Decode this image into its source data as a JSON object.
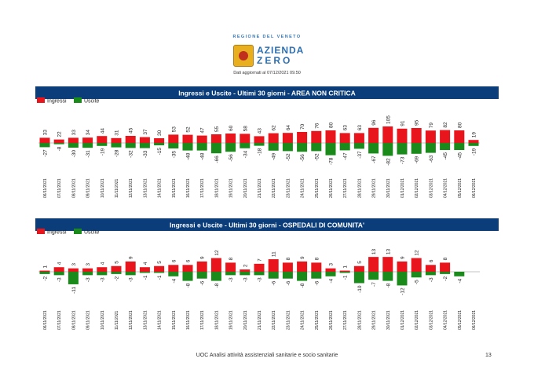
{
  "header": {
    "org": "REGIONE DEL VENETO",
    "brand_line1": "AZIENDA",
    "brand_line2": "ZERO",
    "updated": "Dati aggiornati al 07/12/2021 09.50"
  },
  "footer": {
    "text": "UOC Analisi attività assistenziali sanitarie e socio sanitarie",
    "page": "13"
  },
  "colors": {
    "ingressi": "#e8161c",
    "uscite": "#1a8a1a",
    "banner": "#0a3d7a"
  },
  "chart_data": [
    {
      "type": "bar",
      "title": "Ingressi e Uscite - Ultimi 30 giorni - AREA NON CRITICA",
      "categories": [
        "06/11/2021",
        "07/11/2021",
        "08/11/2021",
        "09/11/2021",
        "10/11/2021",
        "11/11/2021",
        "12/11/2021",
        "13/11/2021",
        "14/11/2021",
        "15/11/2021",
        "16/11/2021",
        "17/11/2021",
        "18/11/2021",
        "19/11/2021",
        "20/11/2021",
        "21/11/2021",
        "22/11/2021",
        "23/11/2021",
        "24/11/2021",
        "25/11/2021",
        "26/11/2021",
        "27/11/2021",
        "28/11/2021",
        "29/11/2021",
        "30/11/2021",
        "01/12/2021",
        "02/12/2021",
        "03/12/2021",
        "04/12/2021",
        "05/12/2021",
        "06/12/2021"
      ],
      "series": [
        {
          "name": "Ingressi",
          "values": [
            33,
            22,
            33,
            34,
            44,
            31,
            45,
            37,
            30,
            53,
            52,
            47,
            55,
            60,
            58,
            43,
            62,
            64,
            70,
            76,
            80,
            63,
            63,
            96,
            105,
            91,
            95,
            79,
            82,
            80,
            19
          ]
        },
        {
          "name": "Uscite",
          "values": [
            -27,
            -8,
            -30,
            -31,
            -19,
            -28,
            -32,
            -33,
            -15,
            -35,
            -48,
            -48,
            -66,
            -56,
            -34,
            -18,
            -49,
            -52,
            -56,
            -52,
            -78,
            -47,
            -37,
            -67,
            -82,
            -73,
            -69,
            -63,
            -45,
            -45,
            -19
          ]
        }
      ],
      "legend": "top-left"
    },
    {
      "type": "bar",
      "title": "Ingressi e Uscite - Ultimi 30 giorni - OSPEDALI DI COMUNITA'",
      "categories": [
        "06/11/2021",
        "07/11/2021",
        "08/11/2021",
        "09/11/2021",
        "10/11/2021",
        "11/11/2021",
        "12/11/2021",
        "13/11/2021",
        "14/11/2021",
        "15/11/2021",
        "16/11/2021",
        "17/11/2021",
        "18/11/2021",
        "19/11/2021",
        "20/11/2021",
        "21/11/2021",
        "22/11/2021",
        "23/11/2021",
        "24/11/2021",
        "25/11/2021",
        "26/11/2021",
        "27/11/2021",
        "28/11/2021",
        "29/11/2021",
        "30/11/2021",
        "01/12/2021",
        "02/12/2021",
        "03/12/2021",
        "04/12/2021",
        "05/12/2021",
        "06/12/2021"
      ],
      "series": [
        {
          "name": "Ingressi",
          "values": [
            1,
            4,
            3,
            3,
            4,
            5,
            9,
            4,
            5,
            6,
            6,
            9,
            12,
            8,
            2,
            7,
            11,
            8,
            9,
            8,
            3,
            1,
            5,
            13,
            13,
            9,
            12,
            6,
            8,
            null,
            null
          ]
        },
        {
          "name": "Uscite",
          "values": [
            -2,
            -3,
            -11,
            -3,
            -3,
            -2,
            -3,
            -1,
            -1,
            -4,
            -8,
            -6,
            -8,
            -3,
            -3,
            -3,
            -6,
            -6,
            -8,
            -6,
            -4,
            -1,
            -10,
            -7,
            -8,
            -12,
            -5,
            -3,
            -2,
            -4,
            null
          ]
        }
      ],
      "legend": "top-left"
    }
  ]
}
